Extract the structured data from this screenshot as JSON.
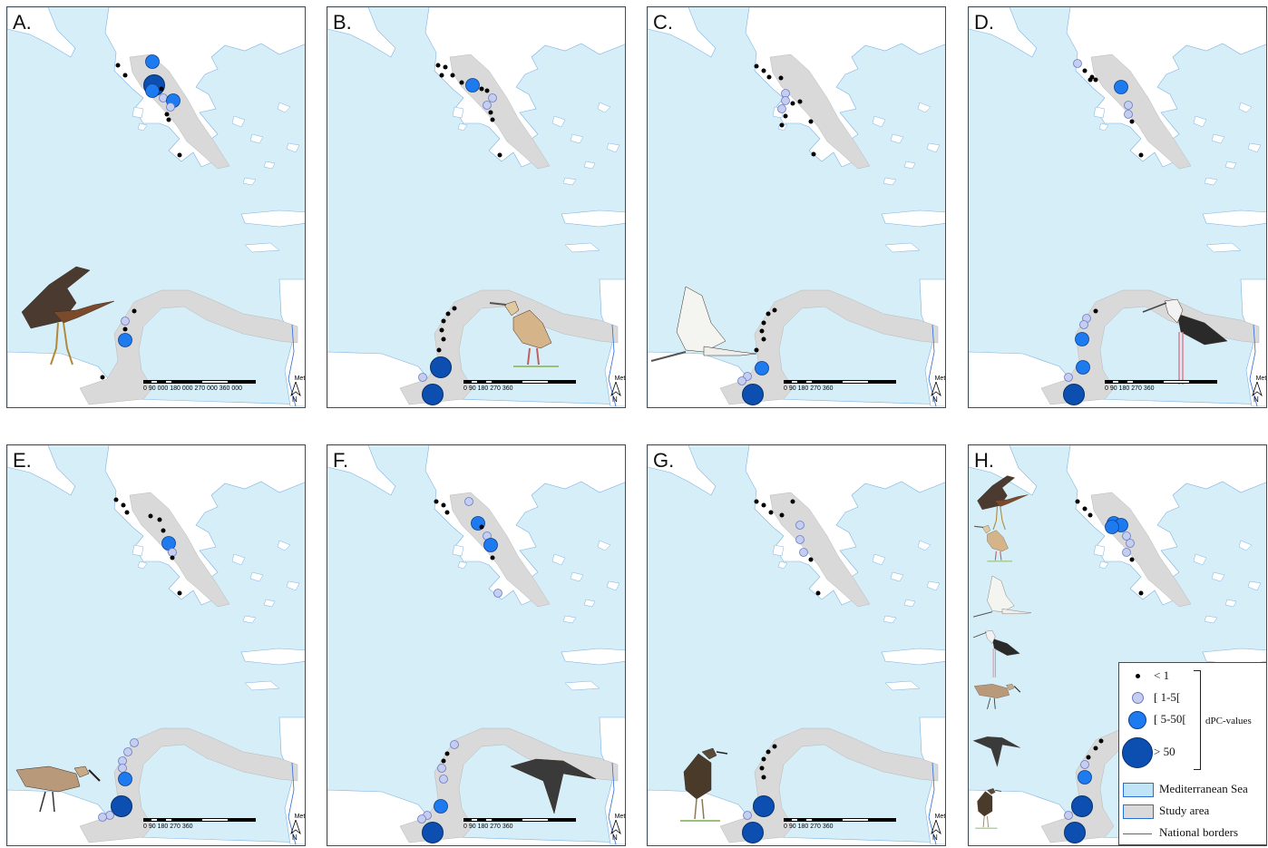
{
  "panels": [
    {
      "letter": "A.",
      "bird": "purple-heron"
    },
    {
      "letter": "B.",
      "bird": "squacco-heron"
    },
    {
      "letter": "C.",
      "bird": "little-egret"
    },
    {
      "letter": "D.",
      "bird": "black-winged-stilt"
    },
    {
      "letter": "E.",
      "bird": "curlew-sandpiper"
    },
    {
      "letter": "F.",
      "bird": "black-tern"
    },
    {
      "letter": "G.",
      "bird": "wood-sandpiper"
    },
    {
      "letter": "H.",
      "bird": "all-species"
    }
  ],
  "scale": {
    "units": "Meters",
    "ticks_a": "0      90 000  180 000 270 000 360 000",
    "ticks": "0     90       180      270      360",
    "north": "N"
  },
  "legend": {
    "items": [
      {
        "label": "< 1"
      },
      {
        "label": "[ 1-5["
      },
      {
        "label": "[ 5-50["
      },
      {
        "label": "> 50"
      }
    ],
    "dpc_label": "dPC-values",
    "layers": [
      {
        "label": "Mediterranean Sea"
      },
      {
        "label": "Study area"
      },
      {
        "label": "National borders"
      }
    ]
  },
  "colors": {
    "sea": "#d6eef8",
    "land": "#ffffff",
    "study_area": "#d9d9d9",
    "small_circle": "#c5cdf0",
    "medium_circle": "#1e7bef",
    "large_circle": "#0d4fb0",
    "border": "#2b6cd6"
  }
}
